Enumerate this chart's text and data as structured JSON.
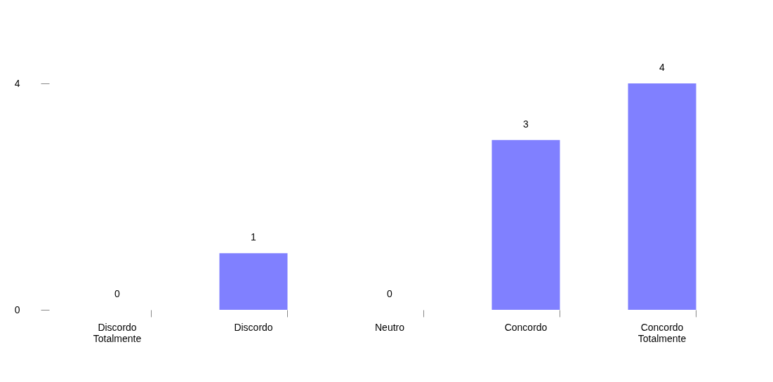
{
  "chart_data": {
    "type": "bar",
    "categories": [
      "Discordo Totalmente",
      "Discordo",
      "Neutro",
      "Concordo",
      "Concordo Totalmente"
    ],
    "values": [
      0,
      1,
      0,
      3,
      4
    ],
    "color": "#8080ff",
    "ylim": [
      0,
      4
    ],
    "yticks": [
      0,
      4
    ],
    "grid": false,
    "data_labels": true
  }
}
